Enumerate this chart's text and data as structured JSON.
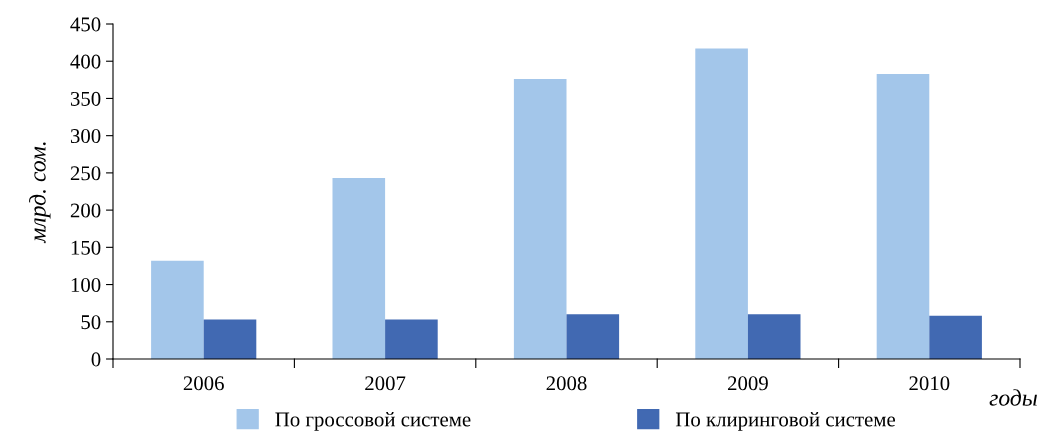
{
  "chart_data": {
    "type": "bar",
    "ylabel": "млрд. сом.",
    "xlabel": "годы",
    "categories": [
      "2006",
      "2007",
      "2008",
      "2009",
      "2010"
    ],
    "series": [
      {
        "name": "По гроссовой системе",
        "color": "#a3c6ea",
        "values": [
          132,
          243,
          376,
          417,
          383
        ]
      },
      {
        "name": "По клиринговой системе",
        "color": "#4169b2",
        "values": [
          53,
          53,
          60,
          60,
          58
        ]
      }
    ],
    "ylim": [
      0,
      450
    ],
    "yticks": [
      0,
      50,
      100,
      150,
      200,
      250,
      300,
      350,
      400,
      450
    ],
    "grid": false,
    "legend": "bottom"
  }
}
